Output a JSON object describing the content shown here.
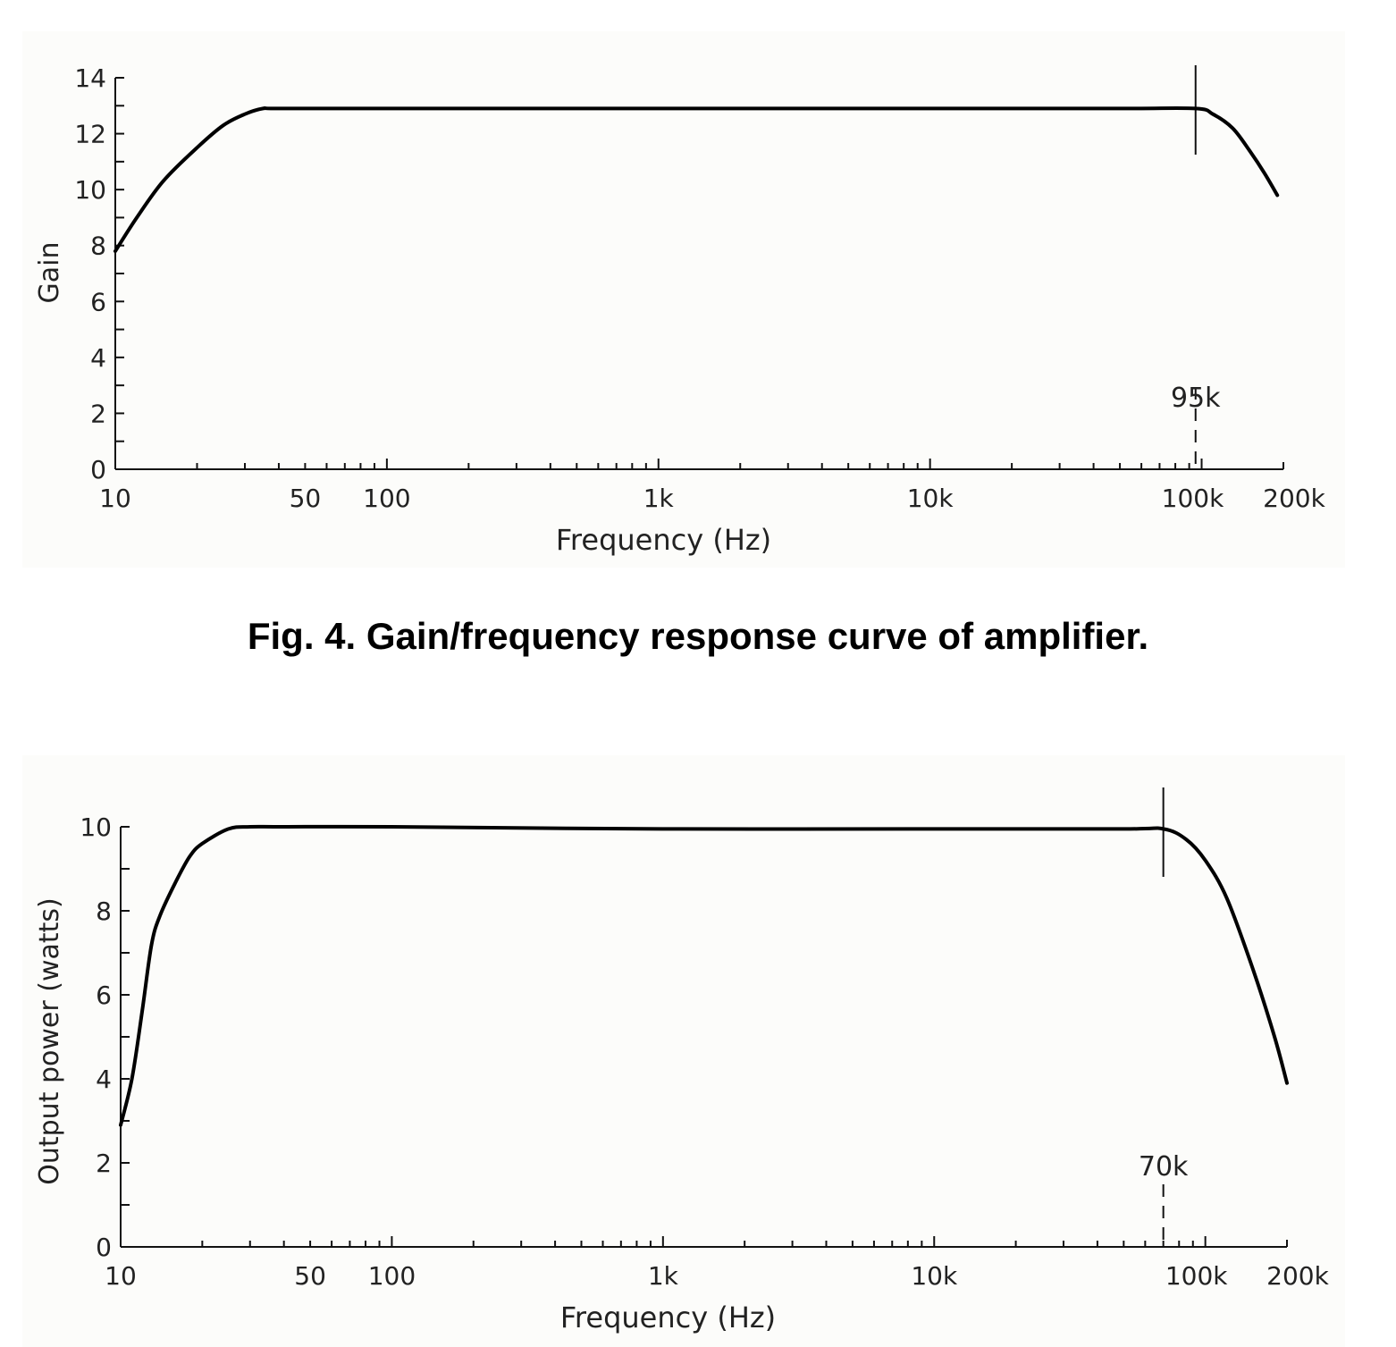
{
  "caption": "Fig. 4. Gain/frequency response curve of amplifier.",
  "chart_data": [
    {
      "type": "line",
      "title": "",
      "xlabel": "Frequency (Hz)",
      "ylabel": "Gain",
      "x_scale": "log",
      "xlim": [
        10,
        200000
      ],
      "ylim": [
        0,
        14
      ],
      "x_tick_labels": [
        {
          "value": 10,
          "label": "10"
        },
        {
          "value": 50,
          "label": "50"
        },
        {
          "value": 100,
          "label": "100"
        },
        {
          "value": 1000,
          "label": "1k"
        },
        {
          "value": 10000,
          "label": "10k"
        },
        {
          "value": 100000,
          "label": "100k"
        },
        {
          "value": 200000,
          "label": "200k"
        }
      ],
      "y_tick_labels": [
        {
          "value": 0,
          "label": "0"
        },
        {
          "value": 2,
          "label": "2"
        },
        {
          "value": 4,
          "label": "4"
        },
        {
          "value": 6,
          "label": "6"
        },
        {
          "value": 8,
          "label": "8"
        },
        {
          "value": 10,
          "label": "10"
        },
        {
          "value": 12,
          "label": "12"
        },
        {
          "value": 14,
          "label": "14"
        }
      ],
      "marker": {
        "value": 95000,
        "label": "95k"
      },
      "grid": false,
      "series": [
        {
          "x": [
            10,
            12,
            15,
            20,
            25,
            30,
            35,
            40,
            100,
            1000,
            10000,
            50000,
            95000,
            110000,
            130000,
            150000,
            170000,
            190000
          ],
          "y": [
            7.8,
            9.0,
            10.3,
            11.5,
            12.3,
            12.7,
            12.9,
            12.9,
            12.9,
            12.9,
            12.9,
            12.9,
            12.9,
            12.7,
            12.2,
            11.4,
            10.6,
            9.8
          ]
        }
      ]
    },
    {
      "type": "line",
      "title": "",
      "xlabel": "Frequency (Hz)",
      "ylabel": "Output power (watts)",
      "x_scale": "log",
      "xlim": [
        10,
        200000
      ],
      "ylim": [
        0,
        10
      ],
      "x_tick_labels": [
        {
          "value": 10,
          "label": "10"
        },
        {
          "value": 50,
          "label": "50"
        },
        {
          "value": 100,
          "label": "100"
        },
        {
          "value": 1000,
          "label": "1k"
        },
        {
          "value": 10000,
          "label": "10k"
        },
        {
          "value": 100000,
          "label": "100k"
        },
        {
          "value": 200000,
          "label": "200k"
        }
      ],
      "y_tick_labels": [
        {
          "value": 0,
          "label": "0"
        },
        {
          "value": 2,
          "label": "2"
        },
        {
          "value": 4,
          "label": "4"
        },
        {
          "value": 6,
          "label": "6"
        },
        {
          "value": 8,
          "label": "8"
        },
        {
          "value": 10,
          "label": "10"
        }
      ],
      "marker": {
        "value": 70000,
        "label": "70k"
      },
      "grid": false,
      "series": [
        {
          "x": [
            10,
            11,
            12,
            13,
            14,
            16,
            18,
            20,
            25,
            30,
            40,
            100,
            1000,
            10000,
            50000,
            70000,
            85000,
            100000,
            120000,
            150000,
            180000,
            200000
          ],
          "y": [
            2.9,
            4.0,
            5.6,
            7.2,
            7.9,
            8.7,
            9.3,
            9.6,
            9.95,
            10.0,
            10.0,
            10.0,
            9.95,
            9.95,
            9.95,
            9.95,
            9.7,
            9.2,
            8.3,
            6.6,
            5.0,
            3.9
          ]
        }
      ]
    }
  ]
}
